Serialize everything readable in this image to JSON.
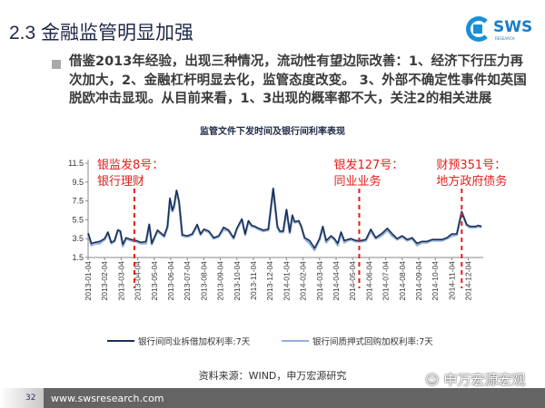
{
  "header": {
    "title": "2.3 金融监管明显加强",
    "logo_text": "SWS",
    "logo_sub": "RESEARCH"
  },
  "body": {
    "bullet_text": "借鉴2013年经验，出现三种情况，流动性有望边际改善：1、经济下行压力再次加大，2、金融杠杆明显去化，监管态度改变。 3、外部不确定性事件如英国脱欧冲击显现。从目前来看，1、3出现的概率都不大，关注2的相关进展"
  },
  "chart_data": {
    "type": "line",
    "title": "监管文件下发时间及银行间利率表现",
    "ylim": [
      1.5,
      11.5
    ],
    "yticks": [
      "11.5",
      "9.5",
      "7.5",
      "5.5",
      "3.5",
      "1.5"
    ],
    "xticks": [
      "2013-01-04",
      "2013-02-04",
      "2013-03-04",
      "2013-04-04",
      "2013-05-04",
      "2013-06-04",
      "2013-07-04",
      "2013-08-04",
      "2013-09-04",
      "2013-10-04",
      "2013-11-04",
      "2013-12-04",
      "2014-01-04",
      "2014-02-04",
      "2014-03-04",
      "2014-04-04",
      "2014-05-04",
      "2014-06-04",
      "2014-07-04",
      "2014-08-04",
      "2014-09-04",
      "2014-10-04",
      "2014-11-04",
      "2014-12-04"
    ],
    "x_unit": "months since 2013-01-04",
    "series": [
      {
        "name": "银行间同业拆借加权利率:7天",
        "color": "#1c2f55",
        "x": [
          0,
          0.2,
          0.4,
          0.7,
          1.0,
          1.2,
          1.4,
          1.6,
          1.8,
          1.95,
          2.1,
          2.3,
          2.6,
          2.9,
          3.2,
          3.5,
          3.7,
          3.85,
          4.2,
          4.6,
          4.8,
          4.95,
          5.1,
          5.2,
          5.35,
          5.5,
          5.7,
          6.0,
          6.3,
          6.6,
          6.8,
          7.0,
          7.3,
          7.6,
          7.9,
          8.2,
          8.5,
          8.8,
          9.0,
          9.3,
          9.5,
          9.7,
          9.9,
          10.1,
          10.3,
          10.6,
          10.9,
          11.2,
          11.45,
          11.6,
          11.8,
          12.0,
          12.2,
          12.35,
          12.5,
          12.75,
          12.9,
          13.1,
          13.4,
          13.7,
          14.0,
          14.2,
          14.4,
          14.7,
          14.9,
          15.1,
          15.3,
          15.5,
          15.7,
          15.9,
          16.2,
          16.5,
          16.8,
          17.1,
          17.4,
          17.8,
          18.1,
          18.4,
          18.7,
          19.0,
          19.3,
          19.6,
          19.9,
          20.2,
          20.5,
          20.8,
          21.1,
          21.4,
          21.7,
          22.0,
          22.3,
          22.6,
          22.9,
          23.1,
          23.3,
          23.45,
          23.6,
          23.8
        ],
        "values": [
          4.1,
          3.0,
          3.1,
          3.2,
          3.5,
          4.2,
          3.1,
          3.3,
          4.4,
          4.3,
          2.9,
          3.6,
          3.4,
          3.3,
          3.1,
          3.2,
          5.0,
          3.0,
          4.4,
          3.8,
          4.8,
          7.8,
          6.5,
          7.0,
          8.6,
          7.5,
          3.9,
          3.8,
          4.0,
          5.0,
          4.0,
          4.5,
          4.3,
          3.6,
          3.8,
          4.7,
          4.4,
          3.6,
          4.6,
          5.6,
          4.0,
          5.4,
          4.9,
          4.8,
          4.6,
          4.4,
          4.5,
          8.8,
          4.8,
          4.3,
          4.3,
          6.6,
          4.2,
          6.0,
          5.3,
          5.4,
          4.8,
          3.6,
          3.3,
          2.5,
          3.5,
          4.8,
          3.3,
          3.8,
          3.5,
          3.0,
          4.2,
          3.3,
          3.4,
          3.5,
          3.3,
          3.3,
          3.4,
          4.5,
          3.6,
          4.1,
          4.6,
          4.0,
          3.5,
          3.8,
          3.4,
          3.6,
          3.0,
          3.2,
          3.2,
          3.4,
          3.4,
          3.4,
          3.6,
          4.0,
          4.0,
          6.3,
          5.0,
          4.8,
          4.8,
          4.8,
          4.9,
          4.8
        ]
      },
      {
        "name": "银行间质押式回购加权利率:7天",
        "color": "#8fb0d8",
        "x": [
          0,
          0.2,
          0.4,
          0.7,
          1.0,
          1.2,
          1.4,
          1.6,
          1.8,
          1.95,
          2.1,
          2.3,
          2.6,
          2.9,
          3.2,
          3.5,
          3.7,
          3.85,
          4.2,
          4.6,
          4.8,
          4.95,
          5.1,
          5.2,
          5.35,
          5.5,
          5.7,
          6.0,
          6.3,
          6.6,
          6.8,
          7.0,
          7.3,
          7.6,
          7.9,
          8.2,
          8.5,
          8.8,
          9.0,
          9.3,
          9.5,
          9.7,
          9.9,
          10.1,
          10.3,
          10.6,
          10.9,
          11.2,
          11.45,
          11.6,
          11.8,
          12.0,
          12.2,
          12.35,
          12.5,
          12.75,
          12.9,
          13.1,
          13.4,
          13.7,
          14.0,
          14.2,
          14.4,
          14.7,
          14.9,
          15.1,
          15.3,
          15.5,
          15.7,
          15.9,
          16.2,
          16.5,
          16.8,
          17.1,
          17.4,
          17.8,
          18.1,
          18.4,
          18.7,
          19.0,
          19.3,
          19.6,
          19.9,
          20.2,
          20.5,
          20.8,
          21.1,
          21.4,
          21.7,
          22.0,
          22.3,
          22.6,
          22.9,
          23.1,
          23.3,
          23.45,
          23.6,
          23.8
        ],
        "values": [
          4.0,
          2.8,
          3.0,
          3.0,
          3.4,
          4.1,
          3.0,
          3.2,
          4.4,
          4.2,
          2.7,
          3.5,
          3.3,
          3.2,
          3.0,
          3.0,
          5.0,
          2.9,
          4.3,
          3.7,
          4.7,
          7.6,
          6.4,
          6.8,
          8.6,
          7.3,
          3.8,
          3.7,
          3.9,
          4.9,
          3.9,
          4.4,
          4.2,
          3.5,
          3.7,
          4.5,
          4.3,
          3.5,
          4.5,
          5.5,
          3.9,
          5.3,
          4.8,
          4.7,
          4.5,
          4.3,
          4.4,
          8.8,
          4.7,
          4.2,
          4.2,
          6.5,
          4.1,
          5.7,
          5.2,
          5.3,
          4.7,
          3.5,
          3.0,
          2.3,
          3.4,
          4.7,
          3.1,
          3.7,
          3.4,
          2.8,
          4.1,
          3.1,
          3.3,
          3.4,
          3.2,
          3.2,
          3.3,
          4.3,
          3.5,
          3.9,
          4.4,
          3.8,
          3.4,
          3.7,
          3.3,
          3.5,
          2.8,
          3.1,
          3.1,
          3.3,
          3.3,
          3.3,
          3.5,
          3.8,
          3.9,
          6.4,
          4.9,
          4.7,
          4.7,
          4.7,
          4.8,
          4.7
        ]
      }
    ],
    "annotations": [
      {
        "x": 2.8,
        "lines": [
          "银监发8号：",
          "银行理财"
        ]
      },
      {
        "x": 16.4,
        "lines": [
          "银发127号：",
          "同业业务"
        ]
      },
      {
        "x": 22.6,
        "lines": [
          "财预351号：",
          "地方政府债务"
        ]
      }
    ],
    "annotation_color": "#e0201c",
    "legend_position": "bottom"
  },
  "source": "资料来源：WIND，申万宏源研究",
  "footer": {
    "page": "32",
    "url": "www.swsresearch.com",
    "watermark": "申万宏源宏观"
  }
}
